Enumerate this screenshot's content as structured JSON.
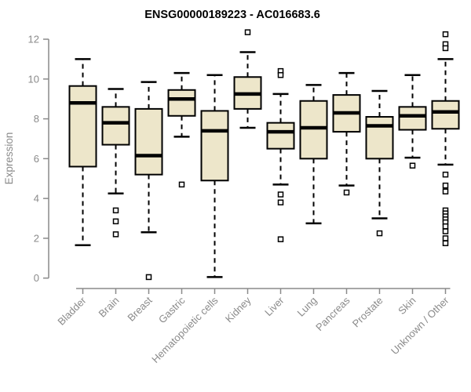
{
  "page": {
    "background": "#ffffff"
  },
  "chart_data": {
    "type": "boxplot",
    "title": "ENSG00000189223 - AC016683.6",
    "xlabel": "",
    "ylabel": "Expression",
    "ylim": [
      0,
      12.4
    ],
    "yticks": [
      0,
      2,
      4,
      6,
      8,
      10,
      12
    ],
    "grid": false,
    "legend": "none",
    "colors": {
      "box_fill": "#EDE6CA",
      "box_border": "#000000",
      "median": "#000000",
      "whisker": "#000000",
      "outlier_fill": "#ffffff",
      "axis": "#8a8a8a",
      "title": "#000000"
    },
    "categories": [
      "Bladder",
      "Brain",
      "Breast",
      "Gastric",
      "Hematopoietic cells",
      "Kidney",
      "Liver",
      "Lung",
      "Pancreas",
      "Prostate",
      "Skin",
      "Unknown / Other"
    ],
    "boxes": [
      {
        "category": "Bladder",
        "whisker_low": 1.65,
        "q1": 5.6,
        "median": 8.8,
        "q3": 9.65,
        "whisker_high": 11.0,
        "outliers": []
      },
      {
        "category": "Brain",
        "whisker_low": 4.25,
        "q1": 6.7,
        "median": 7.8,
        "q3": 8.6,
        "whisker_high": 9.5,
        "outliers": [
          3.4,
          2.85,
          2.2
        ]
      },
      {
        "category": "Breast",
        "whisker_low": 2.3,
        "q1": 5.2,
        "median": 6.15,
        "q3": 8.5,
        "whisker_high": 9.85,
        "outliers": [
          0.05
        ]
      },
      {
        "category": "Gastric",
        "whisker_low": 7.1,
        "q1": 8.15,
        "median": 9.0,
        "q3": 9.45,
        "whisker_high": 10.3,
        "outliers": [
          4.7
        ]
      },
      {
        "category": "Hematopoietic cells",
        "whisker_low": 0.05,
        "q1": 4.9,
        "median": 7.4,
        "q3": 8.4,
        "whisker_high": 10.2,
        "outliers": []
      },
      {
        "category": "Kidney",
        "whisker_low": 7.55,
        "q1": 8.5,
        "median": 9.25,
        "q3": 10.1,
        "whisker_high": 11.35,
        "outliers": [
          12.35
        ]
      },
      {
        "category": "Liver",
        "whisker_low": 4.7,
        "q1": 6.5,
        "median": 7.35,
        "q3": 7.8,
        "whisker_high": 9.25,
        "outliers": [
          10.4,
          10.2,
          4.2,
          3.8,
          1.95
        ]
      },
      {
        "category": "Lung",
        "whisker_low": 2.75,
        "q1": 6.0,
        "median": 7.55,
        "q3": 8.9,
        "whisker_high": 9.7,
        "outliers": []
      },
      {
        "category": "Pancreas",
        "whisker_low": 4.65,
        "q1": 7.35,
        "median": 8.3,
        "q3": 9.2,
        "whisker_high": 10.3,
        "outliers": [
          4.3
        ]
      },
      {
        "category": "Prostate",
        "whisker_low": 3.0,
        "q1": 6.0,
        "median": 7.65,
        "q3": 8.1,
        "whisker_high": 9.4,
        "outliers": [
          2.25
        ]
      },
      {
        "category": "Skin",
        "whisker_low": 6.05,
        "q1": 7.45,
        "median": 8.15,
        "q3": 8.6,
        "whisker_high": 10.2,
        "outliers": [
          5.65
        ]
      },
      {
        "category": "Unknown / Other",
        "whisker_low": 5.7,
        "q1": 7.5,
        "median": 8.35,
        "q3": 8.9,
        "whisker_high": 11.0,
        "outliers": [
          12.25,
          11.75,
          11.55,
          5.2,
          4.65,
          4.35,
          3.4,
          3.25,
          3.1,
          2.95,
          2.8,
          2.6,
          2.35,
          2.0,
          1.75
        ]
      }
    ]
  }
}
